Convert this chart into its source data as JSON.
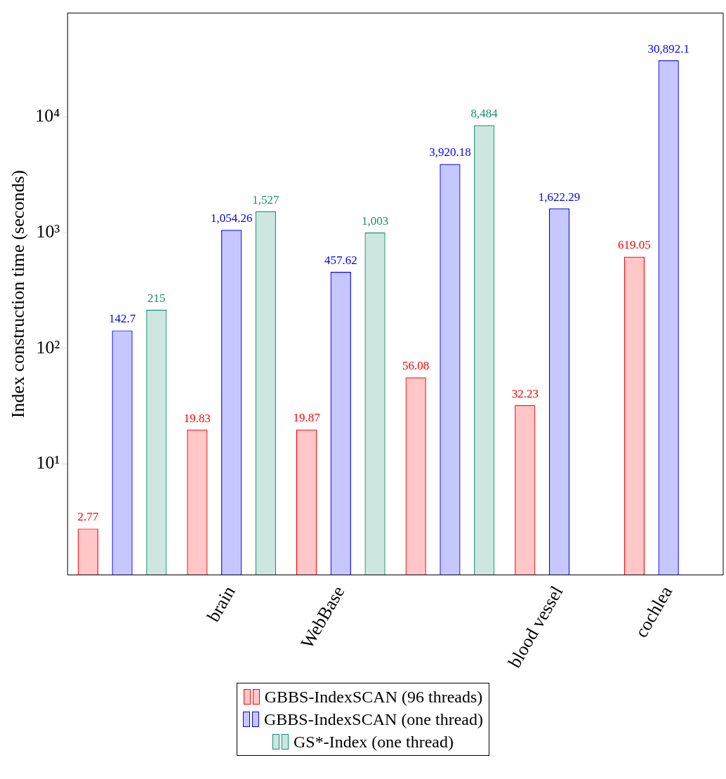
{
  "chart_data": {
    "type": "bar",
    "ylabel": "Index construction time (seconds)",
    "categories": [
      null,
      "brain",
      "WebBase",
      null,
      "blood vessel",
      "cochlea"
    ],
    "series": [
      {
        "name": "GBBS-IndexSCAN (96 threads)",
        "color": "#ff0000",
        "values": [
          2.77,
          19.83,
          19.87,
          56.08,
          32.23,
          619.05
        ],
        "value_labels": [
          "2.77",
          "19.83",
          "19.87",
          "56.08",
          "32.23",
          "619.05"
        ]
      },
      {
        "name": "GBBS-IndexSCAN (one thread)",
        "color": "#0000ff",
        "values": [
          142.7,
          1054.26,
          457.62,
          3920.18,
          1622.29,
          30892.1
        ],
        "value_labels": [
          "142.7",
          "1,054.26",
          "457.62",
          "3,920.18",
          "1,622.29",
          "30,892.1"
        ]
      },
      {
        "name": "GS*-Index (one thread)",
        "color": "#1a8f70",
        "values": [
          215,
          1527,
          1003,
          8484,
          null,
          null
        ],
        "value_labels": [
          "215",
          "1,527",
          "1,003",
          "8,484",
          null,
          null
        ]
      }
    ],
    "log": "y",
    "ylim": [
      1.1,
      79000
    ],
    "yticks": [
      {
        "value": 10,
        "label": "10¹"
      },
      {
        "value": 100,
        "label": "10²"
      },
      {
        "value": 1000,
        "label": "10³"
      },
      {
        "value": 10000,
        "label": "10⁴"
      }
    ],
    "grid": false,
    "legend": "bottom"
  }
}
